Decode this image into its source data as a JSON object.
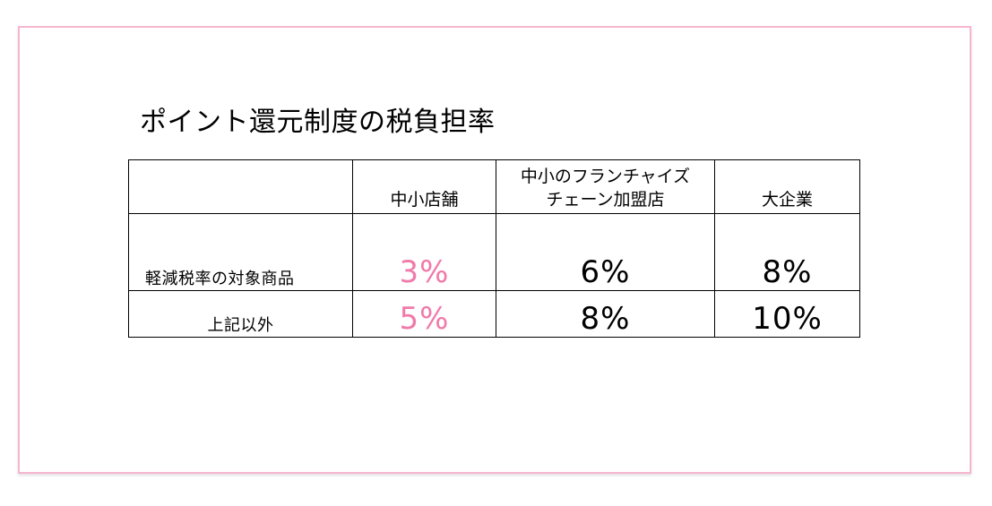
{
  "title": "ポイント還元制度の税負担率",
  "colors": {
    "frame_border": "#f7b6cf",
    "accent": "#f07aaa"
  },
  "table": {
    "columns": [
      "",
      "中小店舗",
      "中小のフランチャイズチェーン加盟店",
      "大企業"
    ],
    "column_lines": {
      "franchise_line1": "中小のフランチャイズ",
      "franchise_line2": "チェーン加盟店"
    },
    "rows": [
      {
        "label": "軽減税率の対象商品",
        "small_store": "3%",
        "franchise": "6%",
        "large": "8%"
      },
      {
        "label": "上記以外",
        "small_store": "5%",
        "franchise": "8%",
        "large": "10%"
      }
    ]
  }
}
